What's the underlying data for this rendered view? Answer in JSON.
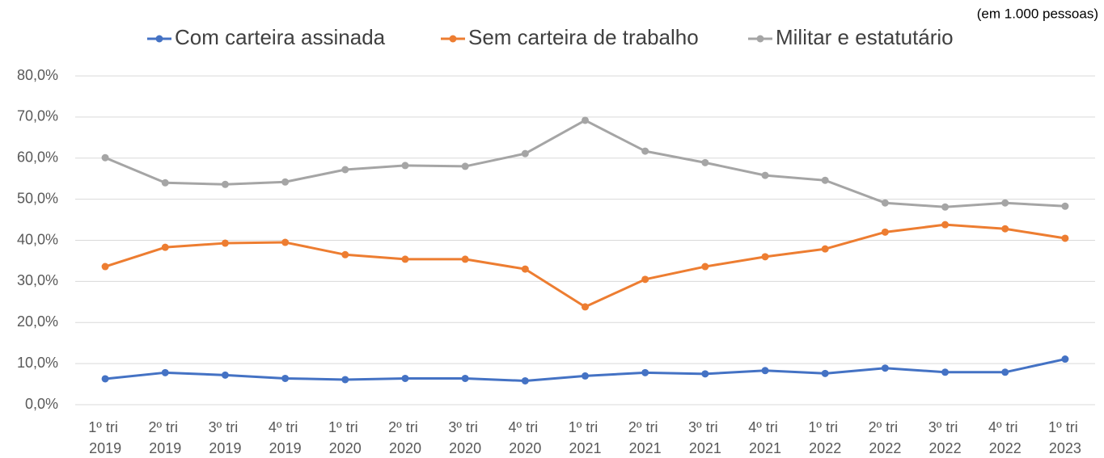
{
  "chart_data": {
    "type": "line",
    "annotation": "(em 1.000 pessoas)",
    "categories": [
      "1º tri 2019",
      "2º tri 2019",
      "3º tri 2019",
      "4º tri 2019",
      "1º tri 2020",
      "2º tri 2020",
      "3º tri 2020",
      "4º tri 2020",
      "1º tri 2021",
      "2º tri 2021",
      "3º tri 2021",
      "4º tri 2021",
      "1º tri 2022",
      "2º tri 2022",
      "3º tri 2022",
      "4º tri 2022",
      "1º tri 2023"
    ],
    "series": [
      {
        "name": "Com carteira assinada",
        "color": "#4472c4",
        "values": [
          6.3,
          7.8,
          7.2,
          6.4,
          6.1,
          6.4,
          6.4,
          5.8,
          7.0,
          7.8,
          7.5,
          8.3,
          7.6,
          8.9,
          7.9,
          7.9,
          11.1
        ]
      },
      {
        "name": "Sem carteira de trabalho",
        "color": "#ed7d31",
        "values": [
          33.6,
          38.3,
          39.3,
          39.5,
          36.5,
          35.4,
          35.4,
          33.0,
          23.8,
          30.5,
          33.6,
          36.0,
          37.9,
          42.0,
          43.8,
          42.8,
          40.5
        ]
      },
      {
        "name": "Militar e estatutário",
        "color": "#a5a5a5",
        "values": [
          60.1,
          54.0,
          53.6,
          54.2,
          57.2,
          58.2,
          58.0,
          61.1,
          69.2,
          61.7,
          58.9,
          55.8,
          54.6,
          49.1,
          48.1,
          49.1,
          48.3
        ]
      }
    ],
    "ylim": [
      0,
      80
    ],
    "yticks": [
      {
        "value": 0,
        "label": "0,0%"
      },
      {
        "value": 10,
        "label": "10,0%"
      },
      {
        "value": 20,
        "label": "20,0%"
      },
      {
        "value": 30,
        "label": "30,0%"
      },
      {
        "value": 40,
        "label": "40,0%"
      },
      {
        "value": 50,
        "label": "50,0%"
      },
      {
        "value": 60,
        "label": "60,0%"
      },
      {
        "value": 70,
        "label": "70,0%"
      },
      {
        "value": 80,
        "label": "80,0%"
      }
    ],
    "grid": true,
    "legend": "top"
  }
}
